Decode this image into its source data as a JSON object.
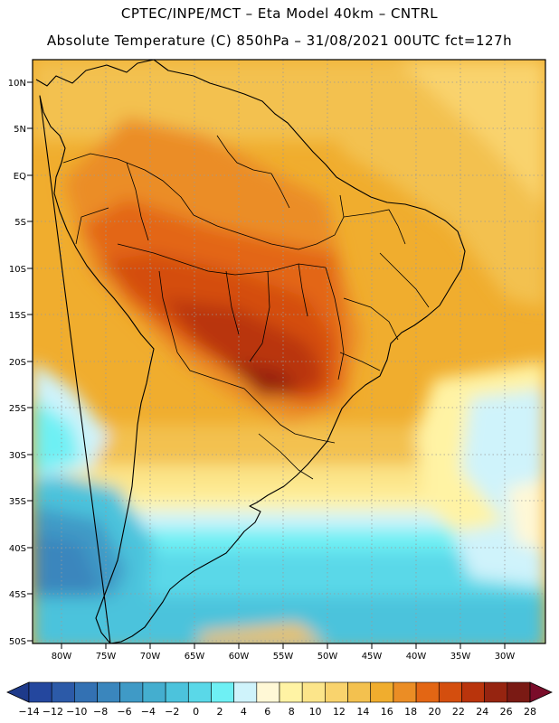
{
  "header": {
    "line1": "CPTEC/INPE/MCT –  Eta Model 40km – CNTRL",
    "line2": "Absolute Temperature (C) 850hPa – 31/08/2021 00UTC fct=127h"
  },
  "map": {
    "lat_labels": [
      "10N",
      "5N",
      "EQ",
      "5S",
      "10S",
      "15S",
      "20S",
      "25S",
      "30S",
      "35S",
      "40S",
      "45S",
      "50S"
    ],
    "lon_labels": [
      "80W",
      "75W",
      "70W",
      "65W",
      "60W",
      "55W",
      "50W",
      "45W",
      "40W",
      "35W",
      "30W"
    ]
  },
  "colorbar": {
    "labels": [
      "-14",
      "-12",
      "-10",
      "-8",
      "-6",
      "-4",
      "-2",
      "0",
      "2",
      "4",
      "6",
      "8",
      "10",
      "12",
      "14",
      "16",
      "18",
      "20",
      "22",
      "24",
      "26",
      "28"
    ],
    "colors": [
      "#24479e",
      "#2c5aa8",
      "#3371b3",
      "#3a86bd",
      "#3f9ac6",
      "#44aecf",
      "#4cc3dc",
      "#5ad8e8",
      "#6ef0f4",
      "#cff3fb",
      "#fff8d6",
      "#fff3a4",
      "#fce58a",
      "#f9d36d",
      "#f3c14f",
      "#f0ad2e",
      "#eb8d25",
      "#e36614",
      "#d44e0e",
      "#b9340c",
      "#962410",
      "#7a1a14"
    ],
    "low_color": "#1e3a8a",
    "high_color": "#7a0d2a"
  }
}
